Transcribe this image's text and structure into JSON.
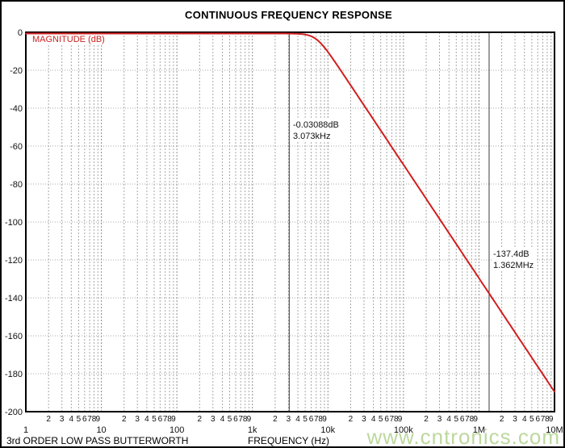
{
  "watermark": "www.cntronics.com",
  "colors": {
    "curve": "#d01f1f",
    "magnitude_label": "#cc2222",
    "grid_minor": "#a8a8a8",
    "grid_major": "#8f8f8f",
    "cursor": "#3c3c3c",
    "frame": "#000000",
    "text": "#111111",
    "watermark": "#bdd89e"
  },
  "chart_data": {
    "type": "line",
    "title": "CONTINUOUS FREQUENCY RESPONSE",
    "xlabel": "FREQUENCY (Hz)",
    "ylabel": "MAGNITUDE (dB)",
    "x_scale": "log",
    "x_range_hz": [
      1,
      10000000
    ],
    "y_range_db": [
      0,
      -200
    ],
    "y_tick_step_db": -20,
    "y_tick_labels": [
      "0",
      "-20",
      "-40",
      "-60",
      "-80",
      "-100",
      "-120",
      "-140",
      "-160",
      "-180",
      "-200"
    ],
    "x_major_tick_labels": [
      "1",
      "10",
      "100",
      "1k",
      "10k",
      "100k",
      "1M",
      "10M"
    ],
    "x_minor_tick_labels": [
      "2",
      "3",
      "4",
      "5",
      "6",
      "7",
      "8",
      "9"
    ],
    "grid": true,
    "legend": "none",
    "series": [
      {
        "name": "3rd ORDER LOW PASS BUTTERWORTH",
        "filter_model": "butterworth_lowpass",
        "order": 3,
        "cutoff_hz": 7006,
        "rolloff_db_per_decade": -60,
        "color": "#d01f1f",
        "key_points_hz_db": [
          [
            1,
            0
          ],
          [
            1000,
            -0.0001
          ],
          [
            3073,
            -0.03088
          ],
          [
            7006,
            -3.01
          ],
          [
            10000,
            -9.76
          ],
          [
            100000,
            -69.27
          ],
          [
            1000000,
            -129.27
          ],
          [
            1362000,
            -137.4
          ],
          [
            10000000,
            -189.27
          ]
        ]
      }
    ],
    "markers": [
      {
        "label_db": "-0.03088dB",
        "label_freq": "3.073kHz",
        "freq_hz": 3073,
        "db": -0.03088
      },
      {
        "label_db": "-137.4dB",
        "label_freq": "1.362MHz",
        "freq_hz": 1362000,
        "db": -137.4
      }
    ]
  }
}
